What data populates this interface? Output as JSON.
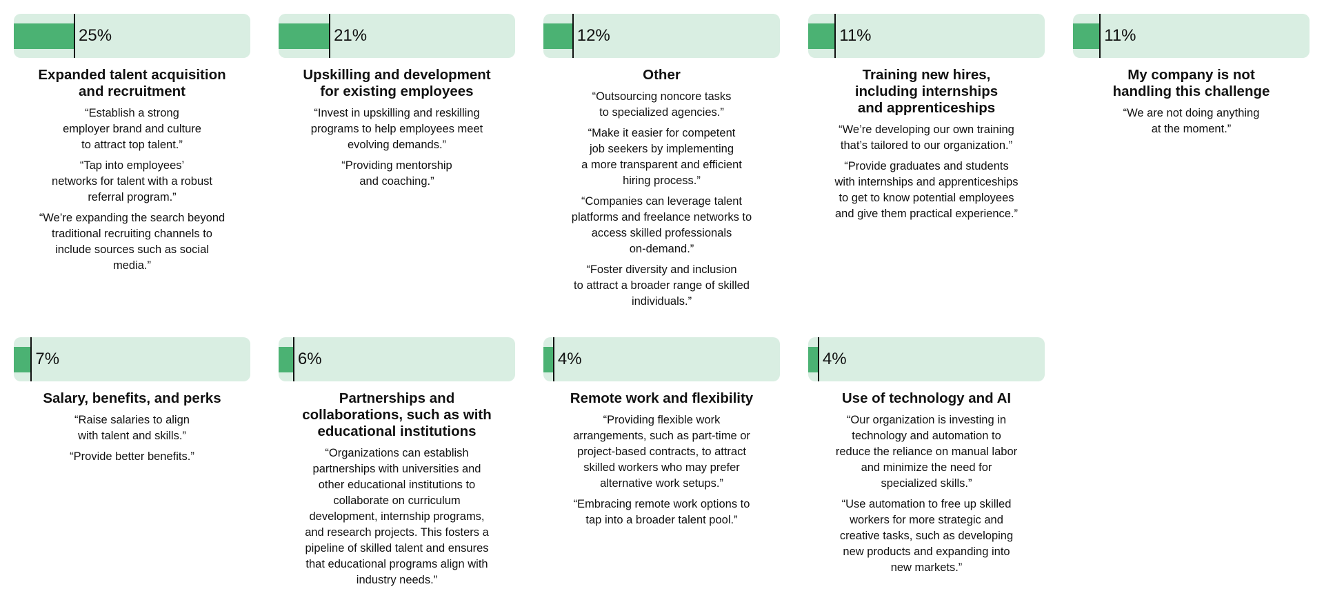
{
  "colors": {
    "bar_bg": "#d9eee2",
    "fill": "#4bb273"
  },
  "chart_data": {
    "type": "bar",
    "categories": [
      "Expanded talent acquisition and recruitment",
      "Upskilling and development for existing employees",
      "Other",
      "Training new hires, including internships and apprenticeships",
      "My company is not handling this challenge",
      "Salary, benefits, and perks",
      "Partnerships and collaborations, such as with educational institutions",
      "Remote work and flexibility",
      "Use of technology and AI"
    ],
    "values": [
      25,
      21,
      12,
      11,
      11,
      7,
      6,
      4,
      4
    ]
  },
  "cards": [
    {
      "label": "25%",
      "title": "Expanded talent acquisition\nand recruitment",
      "quotes": [
        "“Establish a strong\nemployer brand and culture\nto attract top talent.”",
        "“Tap into employees’\nnetworks for talent with a robust\nreferral program.”",
        "“We’re expanding the search beyond\ntraditional recruiting channels to\ninclude sources such as social\nmedia.”"
      ]
    },
    {
      "label": "21%",
      "title": "Upskilling and development\nfor existing employees",
      "quotes": [
        "“Invest in upskilling and reskilling\nprograms to help employees meet\nevolving demands.”",
        "“Providing mentorship\nand coaching.”"
      ]
    },
    {
      "label": "12%",
      "title": "Other",
      "quotes": [
        "“Outsourcing noncore tasks\nto specialized agencies.”",
        "“Make it easier for competent\njob seekers by implementing\na more transparent and efficient\nhiring process.”",
        "“Companies can leverage talent\nplatforms and freelance networks to\naccess skilled professionals\non-demand.”",
        "“Foster diversity and inclusion\nto attract a broader range of skilled\nindividuals.”"
      ]
    },
    {
      "label": "11%",
      "title": "Training new hires,\nincluding internships\nand apprenticeships",
      "quotes": [
        "“We’re developing our own training\nthat’s tailored to our organization.”",
        "“Provide graduates and students\nwith internships and apprenticeships\nto get to know potential employees\nand give them practical experience.”"
      ]
    },
    {
      "label": "11%",
      "title": "My company is not\nhandling this challenge",
      "quotes": [
        "“We are not doing anything\nat the moment.”"
      ]
    },
    {
      "label": "7%",
      "title": "Salary, benefits, and perks",
      "quotes": [
        "“Raise salaries to align\nwith talent and skills.”",
        "“Provide better benefits.”"
      ]
    },
    {
      "label": "6%",
      "title": "Partnerships and\ncollaborations, such as with\neducational institutions",
      "quotes": [
        "“Organizations can establish\npartnerships with universities and\nother educational institutions to\ncollaborate on curriculum\ndevelopment, internship programs,\nand research projects. This fosters a\npipeline of skilled talent and ensures\nthat educational programs align with\nindustry needs.”"
      ]
    },
    {
      "label": "4%",
      "title": "Remote work and flexibility",
      "quotes": [
        "“Providing flexible work\narrangements, such as part-time or\nproject-based contracts, to attract\nskilled workers who may prefer\nalternative work setups.”",
        "“Embracing remote work options to\ntap into a broader talent pool.”"
      ]
    },
    {
      "label": "4%",
      "title": "Use of technology and AI",
      "quotes": [
        "“Our organization is investing in\ntechnology and automation to\nreduce the reliance on manual labor\nand minimize the need for\nspecialized skills.”",
        "“Use automation to free up skilled\nworkers for more strategic and\ncreative tasks, such as developing\nnew products and expanding into\nnew markets.”"
      ]
    }
  ]
}
